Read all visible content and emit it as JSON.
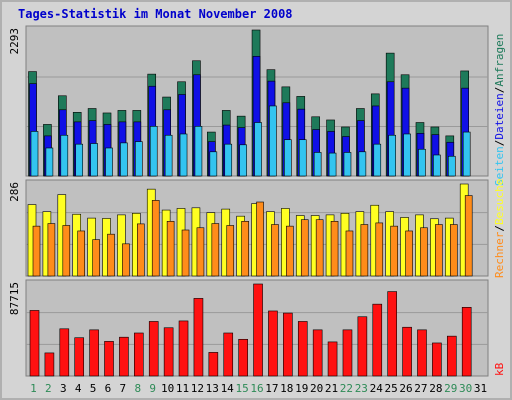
{
  "title": "Tages-Statistik im Monat November 2008",
  "colors": {
    "anfragen": "#1e7a5a",
    "dateien": "#1010e6",
    "seiten": "#33c4f0",
    "besuche": "#ffff22",
    "rechner": "#ff8c1a",
    "kb": "#ff1111",
    "weekend_label": "#2e8b57",
    "weekday_label": "#000000",
    "panel_bg": "#c0c0c0",
    "frame_bg": "#d4d4d4"
  },
  "chart_data": [
    {
      "type": "bar",
      "panel": "top",
      "axis_max_label": "2293",
      "ylim": [
        0,
        2293
      ],
      "categories": [
        "1",
        "2",
        "3",
        "4",
        "5",
        "6",
        "7",
        "8",
        "9",
        "10",
        "11",
        "12",
        "13",
        "14",
        "15",
        "16",
        "17",
        "18",
        "19",
        "20",
        "21",
        "22",
        "23",
        "24",
        "25",
        "26",
        "27",
        "28",
        "29",
        "30",
        "31"
      ],
      "series": [
        {
          "name": "Anfragen",
          "values": [
            1640,
            810,
            1260,
            1000,
            1060,
            990,
            1030,
            1030,
            1600,
            1240,
            1480,
            1810,
            690,
            1030,
            940,
            2293,
            1670,
            1400,
            1250,
            930,
            880,
            770,
            1060,
            1290,
            1930,
            1590,
            840,
            770,
            630,
            1650,
            0
          ]
        },
        {
          "name": "Dateien",
          "values": [
            1450,
            630,
            1040,
            850,
            870,
            810,
            850,
            850,
            1410,
            1040,
            1280,
            1590,
            540,
            800,
            760,
            1880,
            1490,
            1150,
            1050,
            730,
            700,
            620,
            870,
            1100,
            1480,
            1380,
            670,
            650,
            530,
            1380,
            0
          ]
        },
        {
          "name": "Seiten",
          "values": [
            700,
            440,
            640,
            500,
            510,
            440,
            520,
            540,
            780,
            640,
            660,
            780,
            380,
            500,
            490,
            840,
            1100,
            570,
            570,
            370,
            360,
            370,
            380,
            500,
            640,
            660,
            420,
            330,
            310,
            690,
            0
          ]
        }
      ]
    },
    {
      "type": "bar",
      "panel": "middle",
      "axis_max_label": "286",
      "ylim": [
        0,
        286
      ],
      "categories": [
        "1",
        "2",
        "3",
        "4",
        "5",
        "6",
        "7",
        "8",
        "9",
        "10",
        "11",
        "12",
        "13",
        "14",
        "15",
        "16",
        "17",
        "18",
        "19",
        "20",
        "21",
        "22",
        "23",
        "24",
        "25",
        "26",
        "27",
        "28",
        "29",
        "30",
        "31"
      ],
      "series": [
        {
          "name": "Besuche",
          "values": [
            222,
            200,
            253,
            192,
            180,
            179,
            190,
            195,
            270,
            205,
            210,
            212,
            197,
            208,
            186,
            225,
            200,
            210,
            188,
            188,
            190,
            195,
            200,
            220,
            200,
            182,
            190,
            178,
            180,
            286,
            0
          ]
        },
        {
          "name": "Rechner",
          "values": [
            155,
            163,
            157,
            140,
            113,
            130,
            100,
            162,
            235,
            170,
            143,
            150,
            163,
            157,
            170,
            230,
            160,
            155,
            175,
            175,
            170,
            140,
            160,
            165,
            155,
            140,
            150,
            160,
            160,
            250,
            0
          ]
        }
      ]
    },
    {
      "type": "bar",
      "panel": "bottom",
      "axis_max_label": "87715",
      "ylim": [
        0,
        87715
      ],
      "categories": [
        "1",
        "2",
        "3",
        "4",
        "5",
        "6",
        "7",
        "8",
        "9",
        "10",
        "11",
        "12",
        "13",
        "14",
        "15",
        "16",
        "17",
        "18",
        "19",
        "20",
        "21",
        "22",
        "23",
        "24",
        "25",
        "26",
        "27",
        "28",
        "29",
        "30",
        "31"
      ],
      "series": [
        {
          "name": "kB",
          "values": [
            62500,
            22000,
            45000,
            36500,
            44000,
            33000,
            37000,
            41000,
            52000,
            46000,
            52500,
            74000,
            22500,
            41000,
            35000,
            87715,
            62000,
            60000,
            52000,
            44000,
            32500,
            44000,
            56500,
            68500,
            80500,
            46500,
            44000,
            31500,
            38000,
            65500,
            0
          ]
        }
      ]
    }
  ],
  "legend": {
    "anfragen": "Anfragen",
    "dateien": "Dateien",
    "seiten": "Seiten",
    "besuche": "Besuche",
    "rechner": "Rechner",
    "kb": "kB",
    "sep1": "/",
    "sep2": "/",
    "sep3": "/"
  },
  "weekend_days": [
    1,
    2,
    8,
    9,
    15,
    16,
    22,
    23,
    29,
    30
  ]
}
